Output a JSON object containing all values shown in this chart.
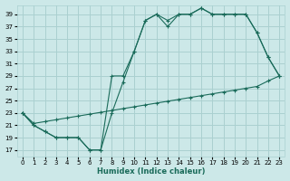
{
  "xlabel": "Humidex (Indice chaleur)",
  "ylabel": "",
  "bg_color": "#cce8e8",
  "grid_color": "#aad0d0",
  "line_color": "#1a6b5a",
  "xlim": [
    -0.5,
    23.5
  ],
  "ylim": [
    16,
    40.5
  ],
  "yticks": [
    17,
    19,
    21,
    23,
    25,
    27,
    29,
    31,
    33,
    35,
    37,
    39
  ],
  "xticks": [
    0,
    1,
    2,
    3,
    4,
    5,
    6,
    7,
    8,
    9,
    10,
    11,
    12,
    13,
    14,
    15,
    16,
    17,
    18,
    19,
    20,
    21,
    22,
    23
  ],
  "line1": {
    "x": [
      0,
      1,
      2,
      3,
      4,
      5,
      6,
      7,
      8,
      9,
      10,
      11,
      12,
      13,
      14,
      15,
      16,
      17,
      18,
      19,
      20,
      21,
      22,
      23
    ],
    "y": [
      23,
      21,
      20,
      19,
      19,
      19,
      17,
      17,
      29,
      29,
      33,
      38,
      39,
      38,
      39,
      39,
      40,
      39,
      39,
      39,
      39,
      36,
      32,
      29
    ]
  },
  "line2": {
    "x": [
      0,
      1,
      2,
      3,
      4,
      5,
      6,
      7,
      8,
      9,
      10,
      11,
      12,
      13,
      14,
      15,
      16,
      17,
      18,
      19,
      20,
      21,
      22,
      23
    ],
    "y": [
      23,
      21,
      20,
      19,
      19,
      19,
      17,
      17,
      23,
      28,
      33,
      38,
      39,
      37,
      39,
      39,
      40,
      39,
      39,
      39,
      39,
      36,
      32,
      29
    ]
  },
  "line3": {
    "x": [
      0,
      1,
      2,
      3,
      4,
      5,
      6,
      7,
      8,
      9,
      10,
      11,
      12,
      13,
      14,
      15,
      16,
      17,
      18,
      19,
      20,
      21,
      22,
      23
    ],
    "y": [
      23,
      21.3,
      21.6,
      21.9,
      22.2,
      22.5,
      22.8,
      23.1,
      23.4,
      23.7,
      24.0,
      24.3,
      24.6,
      24.9,
      25.2,
      25.5,
      25.8,
      26.1,
      26.4,
      26.7,
      27.0,
      27.3,
      28.2,
      29
    ]
  }
}
